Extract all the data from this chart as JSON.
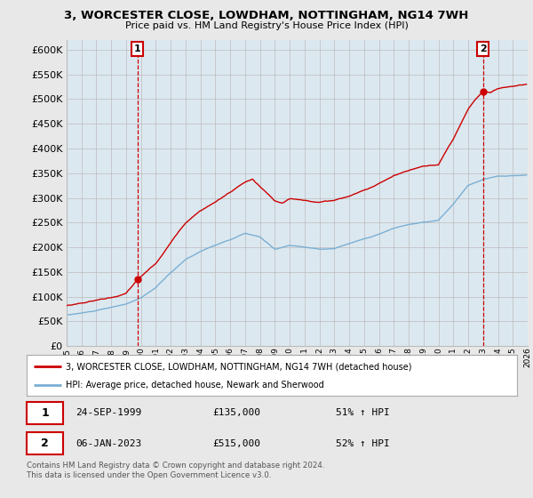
{
  "title": "3, WORCESTER CLOSE, LOWDHAM, NOTTINGHAM, NG14 7WH",
  "subtitle": "Price paid vs. HM Land Registry's House Price Index (HPI)",
  "ylim": [
    0,
    620000
  ],
  "yticks": [
    0,
    50000,
    100000,
    150000,
    200000,
    250000,
    300000,
    350000,
    400000,
    450000,
    500000,
    550000,
    600000
  ],
  "background_color": "#e8e8e8",
  "plot_background": "#dce8f0",
  "grid_color": "#bbbbbb",
  "hpi_color": "#7aafd4",
  "price_color": "#cc0000",
  "transaction1": {
    "date": "24-SEP-1999",
    "price": 135000,
    "label": "1",
    "pct": "51% ↑ HPI",
    "year": 1999.75
  },
  "transaction2": {
    "date": "06-JAN-2023",
    "price": 515000,
    "label": "2",
    "pct": "52% ↑ HPI",
    "year": 2023.0
  },
  "legend_line1": "3, WORCESTER CLOSE, LOWDHAM, NOTTINGHAM, NG14 7WH (detached house)",
  "legend_line2": "HPI: Average price, detached house, Newark and Sherwood",
  "footnote": "Contains HM Land Registry data © Crown copyright and database right 2024.\nThis data is licensed under the Open Government Licence v3.0.",
  "x_start_year": 1995,
  "x_end_year": 2026
}
